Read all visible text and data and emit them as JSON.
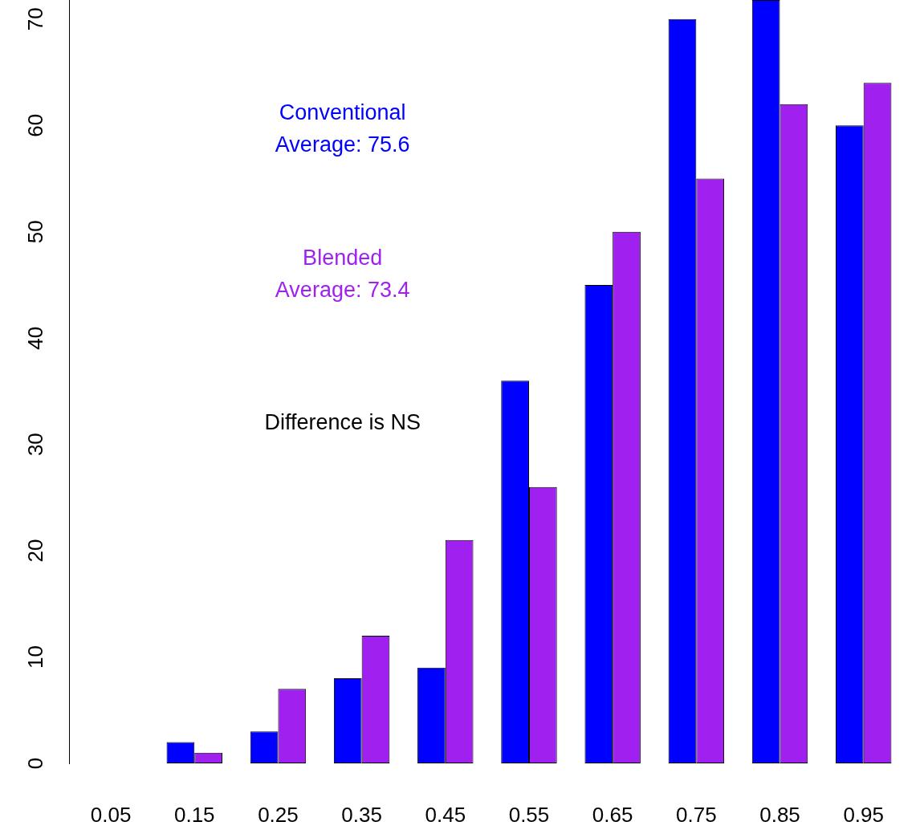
{
  "chart_data": {
    "type": "bar",
    "categories": [
      "0.05",
      "0.15",
      "0.25",
      "0.35",
      "0.45",
      "0.55",
      "0.65",
      "0.75",
      "0.85",
      "0.95"
    ],
    "series": [
      {
        "color": "#0000ff",
        "values": [
          0,
          2,
          3,
          8,
          9,
          36,
          45,
          70,
          71.8,
          60
        ]
      },
      {
        "color": "#a020f0",
        "values": [
          0,
          1,
          7,
          12,
          21,
          26,
          50,
          55,
          62,
          64
        ]
      }
    ],
    "ylim": [
      0,
      71.8
    ],
    "yticks": [
      0,
      10,
      20,
      30,
      40,
      50,
      60,
      70
    ],
    "annotations": [
      "Conventional\nAverage: 75.6",
      "Blended\nAverage: 73.4",
      "Difference is NS"
    ],
    "grid": false,
    "legend": false
  }
}
